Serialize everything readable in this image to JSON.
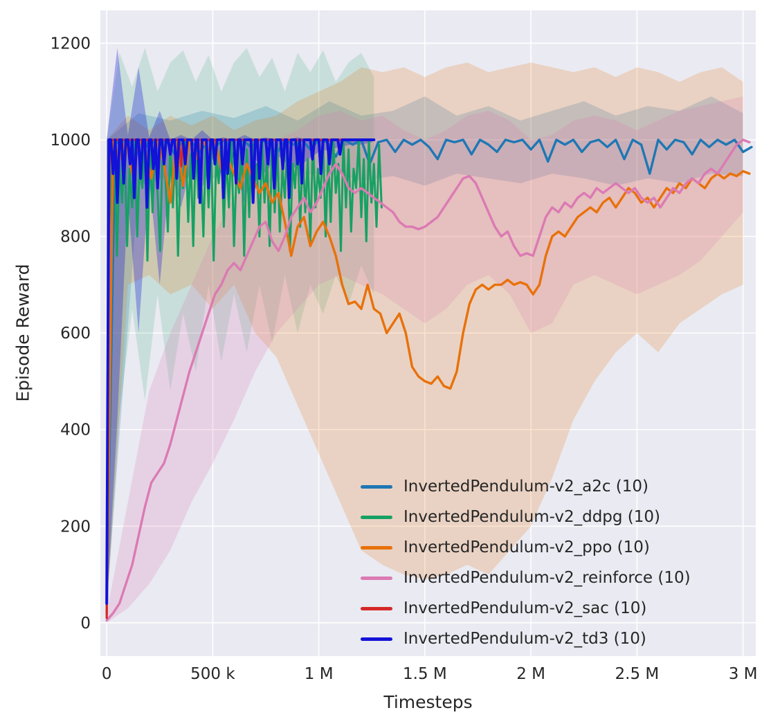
{
  "figure": {
    "bg": "#ffffff",
    "plot_bg": "#eaeaf2",
    "grid_color": "#ffffff",
    "tick_color": "#262626"
  },
  "chart_data": {
    "type": "line",
    "title": "",
    "xlabel": "Timesteps",
    "ylabel": "Episode Reward",
    "xlim": [
      -30000,
      3060000
    ],
    "ylim": [
      -69,
      1268
    ],
    "grid": true,
    "legend_position": "lower center-right, no frame",
    "xticks": {
      "values": [
        0,
        500000,
        1000000,
        1500000,
        2000000,
        2500000,
        3000000
      ],
      "labels": [
        "0",
        "500 k",
        "1 M",
        "1.5 M",
        "2 M",
        "2.5 M",
        "3 M"
      ]
    },
    "yticks": {
      "values": [
        0,
        200,
        400,
        600,
        800,
        1000,
        1200
      ],
      "labels": [
        "0",
        "200",
        "400",
        "600",
        "800",
        "1000",
        "1200"
      ]
    },
    "series": [
      {
        "id": "a2c",
        "name": "InvertedPendulum-v2_a2c (10)",
        "color": "#1f77b4",
        "width": 3.4,
        "band_alpha": 0.22,
        "x_start": 0,
        "x_step": 40000,
        "y": [
          50,
          1000,
          980,
          1000,
          960,
          1000,
          990,
          1000,
          970,
          1000,
          995,
          975,
          1000,
          990,
          1000,
          965,
          1000,
          985,
          1000,
          995,
          970,
          1000,
          990,
          1000,
          980,
          1000,
          995,
          965,
          1000,
          990,
          1000,
          950,
          995,
          1000,
          975,
          1000,
          990,
          1000,
          985,
          960,
          1000,
          995,
          1000,
          970,
          1000,
          990,
          975,
          1000,
          995,
          1000,
          980,
          1000,
          955,
          1000,
          990,
          1000,
          975,
          995,
          1000,
          985,
          1000,
          960,
          1000,
          990,
          930,
          1000,
          980,
          1000,
          995,
          970,
          1000,
          985,
          1000,
          990,
          1000,
          975,
          985
        ],
        "band": {
          "x_start": 0,
          "x_step": 150000,
          "lo": [
            40,
            905,
            925,
            915,
            930,
            910,
            925,
            935,
            915,
            925,
            905,
            930,
            920,
            910,
            930,
            920,
            905,
            920,
            910,
            930,
            925
          ],
          "hi": [
            1000,
            1055,
            1040,
            1060,
            1045,
            1070,
            1040,
            1080,
            1050,
            1060,
            1090,
            1050,
            1070,
            1040,
            1060,
            1080,
            1050,
            1070,
            1060,
            1090,
            1055
          ]
        }
      },
      {
        "id": "ddpg",
        "name": "InvertedPendulum-v2_ddpg (10)",
        "color": "#16a163",
        "width": 3,
        "band_alpha": 0.16,
        "x_start": 0,
        "x_step": 12000,
        "y": [
          30,
          990,
          820,
          1000,
          760,
          950,
          870,
          1000,
          780,
          940,
          860,
          1000,
          800,
          960,
          900,
          1000,
          750,
          980,
          850,
          1000,
          890,
          770,
          1000,
          930,
          810,
          990,
          860,
          1000,
          760,
          950,
          900,
          1000,
          830,
          970,
          780,
          1000,
          880,
          940,
          800,
          1000,
          860,
          990,
          750,
          960,
          910,
          1000,
          820,
          970,
          860,
          1000,
          780,
          940,
          890,
          1000,
          760,
          980,
          840,
          1000,
          900,
          950,
          800,
          1000,
          870,
          960,
          780,
          1000,
          850,
          990,
          810,
          940,
          880,
          1000,
          770,
          950,
          900,
          1000,
          820,
          980,
          850,
          960,
          790,
          1000,
          860,
          940,
          880,
          1000,
          800,
          970,
          830,
          1000,
          890,
          950,
          770,
          1000,
          860,
          980,
          810,
          940,
          900,
          1000,
          840,
          960,
          790,
          1000,
          870,
          950,
          820,
          990,
          860
        ],
        "band": {
          "x_start": 0,
          "x_step": 60000,
          "lo": [
            20,
            430,
            650,
            460,
            680,
            480,
            640,
            520,
            700,
            540,
            680,
            560,
            700,
            580,
            720,
            600,
            700,
            640,
            720,
            660,
            740,
            680
          ],
          "hi": [
            1000,
            1180,
            1110,
            1190,
            1100,
            1160,
            1185,
            1120,
            1175,
            1100,
            1160,
            1190,
            1130,
            1170,
            1100,
            1180,
            1140,
            1185,
            1120,
            1160,
            1180,
            1130
          ]
        }
      },
      {
        "id": "ppo",
        "name": "InvertedPendulum-v2_ppo (10)",
        "color": "#e8710a",
        "width": 3.4,
        "band_alpha": 0.2,
        "x_start": 0,
        "x_step": 30000,
        "y": [
          20,
          1000,
          960,
          1000,
          930,
          1000,
          980,
          920,
          1000,
          950,
          870,
          1000,
          905,
          1000,
          960,
          1000,
          980,
          1000,
          940,
          960,
          930,
          900,
          950,
          920,
          890,
          910,
          870,
          890,
          830,
          760,
          820,
          840,
          780,
          810,
          830,
          800,
          760,
          700,
          660,
          665,
          650,
          700,
          650,
          640,
          600,
          620,
          640,
          600,
          530,
          510,
          500,
          495,
          510,
          490,
          485,
          520,
          600,
          660,
          690,
          700,
          690,
          700,
          700,
          710,
          700,
          705,
          700,
          680,
          700,
          760,
          800,
          810,
          800,
          820,
          840,
          850,
          860,
          850,
          870,
          880,
          860,
          880,
          900,
          890,
          870,
          880,
          860,
          880,
          900,
          890,
          910,
          900,
          920,
          910,
          900,
          920,
          930,
          920,
          930,
          925,
          935,
          930
        ],
        "band": {
          "x_start": 0,
          "x_step": 100000,
          "lo": [
            20,
            700,
            720,
            680,
            700,
            650,
            700,
            600,
            550,
            450,
            350,
            250,
            150,
            120,
            100,
            90,
            100,
            120,
            100,
            150,
            200,
            300,
            420,
            500,
            560,
            600,
            560,
            620,
            650,
            680,
            700
          ],
          "hi": [
            1000,
            1050,
            1020,
            1050,
            1030,
            1050,
            1020,
            1040,
            1050,
            1080,
            1100,
            1120,
            1150,
            1140,
            1150,
            1130,
            1150,
            1160,
            1140,
            1150,
            1160,
            1150,
            1140,
            1150,
            1130,
            1150,
            1140,
            1120,
            1140,
            1150,
            1120
          ]
        }
      },
      {
        "id": "reinforce",
        "name": "InvertedPendulum-v2_reinforce (10)",
        "color": "#db7ab3",
        "width": 3.4,
        "band_alpha": 0.22,
        "x_start": 0,
        "x_step": 30000,
        "y": [
          5,
          20,
          40,
          80,
          120,
          180,
          240,
          290,
          310,
          330,
          370,
          420,
          470,
          520,
          560,
          600,
          640,
          680,
          700,
          730,
          745,
          730,
          760,
          790,
          820,
          830,
          790,
          770,
          800,
          840,
          860,
          880,
          850,
          870,
          900,
          930,
          950,
          930,
          900,
          890,
          900,
          890,
          880,
          870,
          860,
          850,
          830,
          820,
          820,
          815,
          820,
          830,
          840,
          860,
          880,
          900,
          920,
          925,
          910,
          880,
          850,
          820,
          800,
          810,
          780,
          760,
          765,
          760,
          800,
          840,
          860,
          850,
          870,
          860,
          880,
          890,
          880,
          900,
          890,
          900,
          910,
          900,
          890,
          900,
          880,
          870,
          880,
          860,
          880,
          900,
          890,
          910,
          920,
          910,
          930,
          940,
          930,
          950,
          970,
          990,
          1000,
          995
        ],
        "band": {
          "x_start": 0,
          "x_step": 100000,
          "lo": [
            0,
            30,
            80,
            150,
            250,
            330,
            420,
            520,
            600,
            650,
            700,
            720,
            700,
            680,
            650,
            620,
            650,
            700,
            720,
            680,
            600,
            620,
            700,
            720,
            700,
            680,
            700,
            720,
            750,
            800,
            850
          ],
          "hi": [
            20,
            250,
            480,
            600,
            700,
            800,
            880,
            950,
            1000,
            1020,
            1050,
            1060,
            1040,
            1050,
            1020,
            1000,
            1020,
            1050,
            1060,
            1040,
            1000,
            1010,
            1040,
            1050,
            1040,
            1020,
            1040,
            1060,
            1070,
            1080,
            1090
          ]
        }
      },
      {
        "id": "sac",
        "name": "InvertedPendulum-v2_sac (10)",
        "color": "#d62828",
        "width": 3.2,
        "band_alpha": 0.2,
        "x": [
          0,
          6000,
          14000,
          340000,
          352000,
          360000,
          1252000
        ],
        "y": [
          10,
          600,
          1000,
          1000,
          945,
          1000,
          1000
        ]
      },
      {
        "id": "td3",
        "name": "InvertedPendulum-v2_td3 (10)",
        "color": "#1212d8",
        "width": 4,
        "band_alpha": 0.3,
        "x_start": 0,
        "x_step": 10000,
        "y": [
          40,
          1000,
          1000,
          930,
          1000,
          870,
          1000,
          1000,
          910,
          1000,
          1000,
          950,
          1000,
          880,
          1000,
          1000,
          920,
          1000,
          1000,
          860,
          1000,
          1000,
          940,
          1000,
          900,
          1000,
          1000,
          950,
          1000,
          1000,
          970,
          1000,
          1000,
          920,
          1000,
          1000,
          1000,
          950,
          1000,
          1000,
          1000,
          920,
          1000,
          1000,
          870,
          1000,
          1000,
          1000,
          900,
          1000,
          1000,
          950,
          1000,
          1000,
          1000,
          880,
          1000,
          930,
          1000,
          1000,
          1000,
          910,
          1000,
          1000,
          950,
          1000,
          1000,
          1000,
          1000,
          870,
          1000,
          1000,
          920,
          1000,
          1000,
          1000,
          950,
          1000,
          1000,
          900,
          1000,
          1000,
          1000,
          940,
          1000,
          1000,
          880,
          1000,
          1000,
          1000,
          950,
          1000,
          910,
          1000,
          1000,
          1000,
          1000,
          960,
          1000,
          1000,
          1000,
          930,
          1000,
          1000,
          1000,
          950,
          1000,
          1000,
          1000,
          1000,
          970,
          1000,
          1000,
          1000,
          1000,
          1000,
          1000,
          1000,
          1000,
          1000,
          1000,
          1000,
          1000,
          1000,
          1000,
          1000,
          1000
        ],
        "band": {
          "x_start": 0,
          "x_step": 50000,
          "lo": [
            30,
            420,
            880,
            600,
            920,
            700,
            940,
            860,
            950,
            900,
            960,
            920,
            950,
            870,
            960,
            930,
            970,
            950,
            940,
            960,
            975,
            980,
            985,
            990,
            990,
            995
          ],
          "hi": [
            1000,
            1190,
            1010,
            1150,
            1005,
            1060,
            1000,
            1010,
            1000,
            1020,
            1000,
            1005,
            1000,
            1010,
            1000,
            1005,
            1000,
            1000,
            1005,
            1000,
            1000,
            1000,
            1000,
            1000,
            1000,
            1000
          ]
        }
      }
    ]
  }
}
